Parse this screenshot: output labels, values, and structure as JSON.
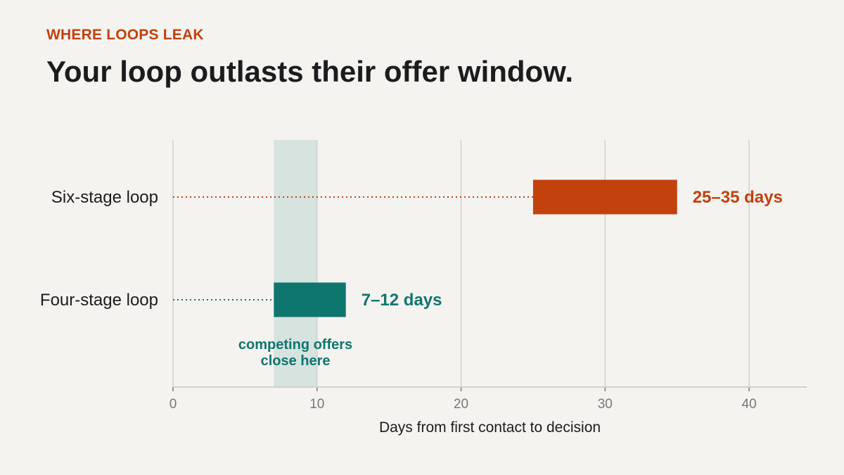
{
  "header": {
    "eyebrow": "WHERE LOOPS LEAK",
    "title": "Your loop outlasts their offer window."
  },
  "colors": {
    "six_stage": "#c2410c",
    "four_stage": "#0f766e",
    "window_band": "#d6e3df",
    "grid": "#d3d1cc",
    "axis_text": "#777777",
    "background": "#f4f3f0"
  },
  "chart_data": {
    "type": "range-bar",
    "title": "",
    "xlabel": "Days from first contact to decision",
    "ylabel": "",
    "xlim": [
      0,
      44
    ],
    "xticks": [
      0,
      10,
      20,
      30,
      40
    ],
    "grid": true,
    "categories": [
      "Six-stage loop",
      "Four-stage loop"
    ],
    "series": [
      {
        "category": "Six-stage loop",
        "start": 25,
        "end": 35,
        "label": "25–35 days",
        "color": "#c2410c"
      },
      {
        "category": "Four-stage loop",
        "start": 7,
        "end": 12,
        "label": "7–12 days",
        "color": "#0f766e"
      }
    ],
    "offer_window": {
      "start": 7,
      "end": 10,
      "label_lines": [
        "competing offers",
        "close here"
      ],
      "color": "#0f766e"
    }
  }
}
